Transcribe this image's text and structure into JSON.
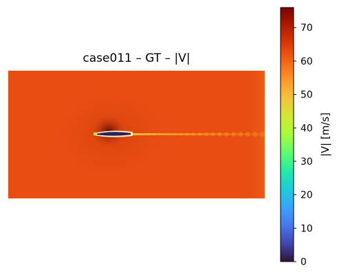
{
  "chart_data": {
    "type": "heatmap",
    "title": "case011 – GT – |V|",
    "colorbar": {
      "label": "|V| [m/s]",
      "range": [
        0,
        76
      ],
      "ticks": [
        0,
        10,
        20,
        30,
        40,
        50,
        60,
        70
      ],
      "colormap": "turbo"
    },
    "field": {
      "freestream_value": 63,
      "wake_value": 56,
      "body_value": 3,
      "background_color": "#e84d12",
      "body_color": "#2a1f5e",
      "edge_color": "#f5f0c8"
    },
    "axes_visible": false
  }
}
